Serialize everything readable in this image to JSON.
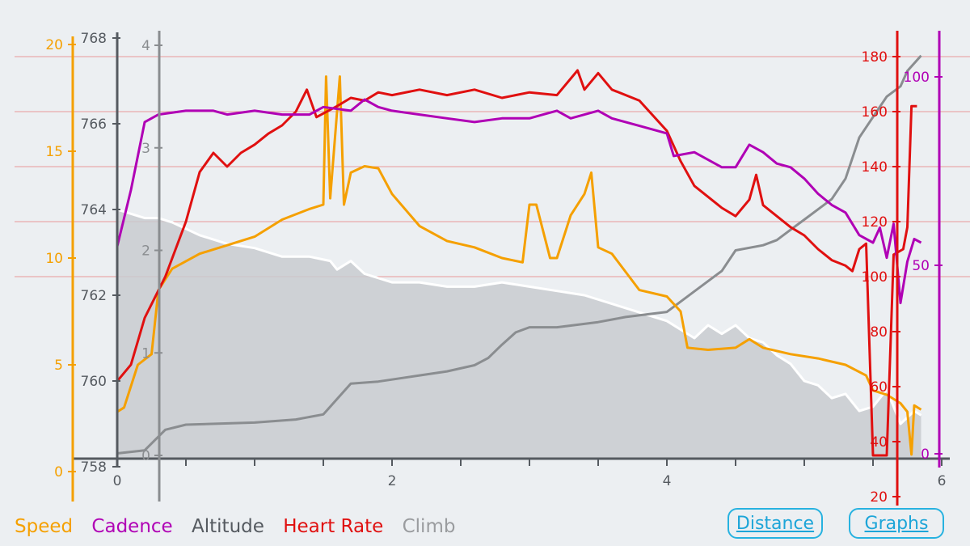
{
  "chart_data": {
    "type": "line",
    "x_axis": {
      "ticks": [
        "0",
        "2",
        "4",
        "6"
      ],
      "range": [
        0,
        6
      ]
    },
    "axes": {
      "speed": {
        "ticks": [
          "0",
          "5",
          "10",
          "15",
          "20"
        ],
        "range": [
          0,
          20
        ],
        "color": "#f5a000"
      },
      "altitude": {
        "ticks": [
          "758",
          "760",
          "762",
          "764",
          "766",
          "768"
        ],
        "range": [
          758,
          768
        ],
        "color": "#555a60"
      },
      "climb": {
        "ticks": [
          "0",
          "1",
          "2",
          "3",
          "4"
        ],
        "range": [
          0,
          4
        ],
        "color": "#8a8d90"
      },
      "heart_rate": {
        "ticks": [
          "20",
          "40",
          "60",
          "80",
          "100",
          "120",
          "140",
          "160",
          "180"
        ],
        "range": [
          20,
          190
        ],
        "color": "#e01010"
      },
      "cadence": {
        "ticks": [
          "0",
          "50",
          "100"
        ],
        "range": [
          0,
          110
        ],
        "color": "#b000b5"
      }
    },
    "series": [
      {
        "name": "Altitude",
        "axis": "altitude",
        "color": "#ffffff",
        "fill": "#c9cbd0",
        "points": [
          [
            0,
            764.0
          ],
          [
            0.1,
            763.9
          ],
          [
            0.2,
            763.8
          ],
          [
            0.3,
            763.8
          ],
          [
            0.4,
            763.7
          ],
          [
            0.6,
            763.4
          ],
          [
            0.8,
            763.2
          ],
          [
            1.0,
            763.1
          ],
          [
            1.2,
            762.9
          ],
          [
            1.4,
            762.9
          ],
          [
            1.55,
            762.8
          ],
          [
            1.6,
            762.6
          ],
          [
            1.7,
            762.8
          ],
          [
            1.8,
            762.5
          ],
          [
            2.0,
            762.3
          ],
          [
            2.2,
            762.3
          ],
          [
            2.4,
            762.2
          ],
          [
            2.6,
            762.2
          ],
          [
            2.8,
            762.3
          ],
          [
            3.0,
            762.2
          ],
          [
            3.2,
            762.1
          ],
          [
            3.4,
            762.0
          ],
          [
            3.6,
            761.8
          ],
          [
            3.8,
            761.6
          ],
          [
            4.0,
            761.4
          ],
          [
            4.2,
            761.0
          ],
          [
            4.3,
            761.3
          ],
          [
            4.4,
            761.1
          ],
          [
            4.5,
            761.3
          ],
          [
            4.6,
            761.0
          ],
          [
            4.7,
            760.9
          ],
          [
            4.8,
            760.6
          ],
          [
            4.9,
            760.4
          ],
          [
            5.0,
            760.0
          ],
          [
            5.1,
            759.9
          ],
          [
            5.2,
            759.6
          ],
          [
            5.3,
            759.7
          ],
          [
            5.4,
            759.3
          ],
          [
            5.5,
            759.4
          ],
          [
            5.6,
            759.8
          ],
          [
            5.7,
            759.0
          ],
          [
            5.8,
            759.3
          ],
          [
            5.85,
            759.2
          ]
        ]
      },
      {
        "name": "Climb",
        "axis": "climb",
        "color": "#8a8d90",
        "points": [
          [
            0,
            0.02
          ],
          [
            0.2,
            0.05
          ],
          [
            0.35,
            0.25
          ],
          [
            0.5,
            0.3
          ],
          [
            1.0,
            0.32
          ],
          [
            1.3,
            0.35
          ],
          [
            1.5,
            0.4
          ],
          [
            1.6,
            0.55
          ],
          [
            1.7,
            0.7
          ],
          [
            1.9,
            0.72
          ],
          [
            2.2,
            0.78
          ],
          [
            2.4,
            0.82
          ],
          [
            2.6,
            0.88
          ],
          [
            2.7,
            0.95
          ],
          [
            2.8,
            1.08
          ],
          [
            2.9,
            1.2
          ],
          [
            3.0,
            1.25
          ],
          [
            3.2,
            1.25
          ],
          [
            3.5,
            1.3
          ],
          [
            3.7,
            1.35
          ],
          [
            4.0,
            1.4
          ],
          [
            4.2,
            1.6
          ],
          [
            4.4,
            1.8
          ],
          [
            4.5,
            2.0
          ],
          [
            4.7,
            2.05
          ],
          [
            4.8,
            2.1
          ],
          [
            4.9,
            2.2
          ],
          [
            5.0,
            2.3
          ],
          [
            5.1,
            2.4
          ],
          [
            5.2,
            2.5
          ],
          [
            5.3,
            2.7
          ],
          [
            5.4,
            3.1
          ],
          [
            5.5,
            3.3
          ],
          [
            5.6,
            3.5
          ],
          [
            5.7,
            3.6
          ],
          [
            5.75,
            3.75
          ],
          [
            5.85,
            3.9
          ]
        ]
      },
      {
        "name": "Speed",
        "axis": "speed",
        "color": "#f5a000",
        "points": [
          [
            0,
            2.8
          ],
          [
            0.05,
            3.0
          ],
          [
            0.15,
            5.0
          ],
          [
            0.25,
            5.5
          ],
          [
            0.3,
            8.5
          ],
          [
            0.4,
            9.5
          ],
          [
            0.6,
            10.2
          ],
          [
            0.8,
            10.6
          ],
          [
            1.0,
            11.0
          ],
          [
            1.2,
            11.8
          ],
          [
            1.4,
            12.3
          ],
          [
            1.5,
            12.5
          ],
          [
            1.52,
            18.5
          ],
          [
            1.55,
            12.8
          ],
          [
            1.62,
            18.5
          ],
          [
            1.65,
            12.5
          ],
          [
            1.7,
            14.0
          ],
          [
            1.8,
            14.3
          ],
          [
            1.9,
            14.2
          ],
          [
            2.0,
            13.0
          ],
          [
            2.2,
            11.5
          ],
          [
            2.4,
            10.8
          ],
          [
            2.6,
            10.5
          ],
          [
            2.8,
            10.0
          ],
          [
            2.95,
            9.8
          ],
          [
            3.0,
            12.5
          ],
          [
            3.05,
            12.5
          ],
          [
            3.15,
            10.0
          ],
          [
            3.2,
            10.0
          ],
          [
            3.3,
            12.0
          ],
          [
            3.4,
            13.0
          ],
          [
            3.45,
            14.0
          ],
          [
            3.5,
            10.5
          ],
          [
            3.6,
            10.2
          ],
          [
            3.8,
            8.5
          ],
          [
            4.0,
            8.2
          ],
          [
            4.1,
            7.5
          ],
          [
            4.15,
            5.8
          ],
          [
            4.3,
            5.7
          ],
          [
            4.5,
            5.8
          ],
          [
            4.6,
            6.2
          ],
          [
            4.7,
            5.8
          ],
          [
            4.9,
            5.5
          ],
          [
            5.1,
            5.3
          ],
          [
            5.3,
            5.0
          ],
          [
            5.45,
            4.5
          ],
          [
            5.5,
            3.8
          ],
          [
            5.6,
            3.6
          ],
          [
            5.7,
            3.2
          ],
          [
            5.75,
            2.8
          ],
          [
            5.78,
            0.8
          ],
          [
            5.8,
            3.1
          ],
          [
            5.85,
            2.9
          ]
        ]
      },
      {
        "name": "Heart Rate",
        "axis": "heart_rate",
        "color": "#e01010",
        "points": [
          [
            0,
            62
          ],
          [
            0.1,
            68
          ],
          [
            0.2,
            85
          ],
          [
            0.35,
            100
          ],
          [
            0.5,
            120
          ],
          [
            0.6,
            138
          ],
          [
            0.7,
            145
          ],
          [
            0.8,
            140
          ],
          [
            0.9,
            145
          ],
          [
            1.0,
            148
          ],
          [
            1.1,
            152
          ],
          [
            1.2,
            155
          ],
          [
            1.3,
            160
          ],
          [
            1.38,
            168
          ],
          [
            1.45,
            158
          ],
          [
            1.6,
            162
          ],
          [
            1.7,
            165
          ],
          [
            1.8,
            164
          ],
          [
            1.9,
            167
          ],
          [
            2.0,
            166
          ],
          [
            2.2,
            168
          ],
          [
            2.4,
            166
          ],
          [
            2.6,
            168
          ],
          [
            2.8,
            165
          ],
          [
            3.0,
            167
          ],
          [
            3.2,
            166
          ],
          [
            3.35,
            175
          ],
          [
            3.4,
            168
          ],
          [
            3.5,
            174
          ],
          [
            3.6,
            168
          ],
          [
            3.8,
            164
          ],
          [
            4.0,
            153
          ],
          [
            4.1,
            142
          ],
          [
            4.2,
            133
          ],
          [
            4.4,
            125
          ],
          [
            4.5,
            122
          ],
          [
            4.6,
            128
          ],
          [
            4.65,
            137
          ],
          [
            4.7,
            126
          ],
          [
            4.8,
            122
          ],
          [
            4.9,
            118
          ],
          [
            5.0,
            115
          ],
          [
            5.1,
            110
          ],
          [
            5.2,
            106
          ],
          [
            5.3,
            104
          ],
          [
            5.35,
            102
          ],
          [
            5.4,
            110
          ],
          [
            5.45,
            112
          ],
          [
            5.5,
            35
          ],
          [
            5.6,
            35
          ],
          [
            5.65,
            108
          ],
          [
            5.72,
            110
          ],
          [
            5.75,
            118
          ],
          [
            5.78,
            162
          ],
          [
            5.82,
            162
          ]
        ]
      },
      {
        "name": "Cadence",
        "axis": "cadence",
        "color": "#b000b5",
        "points": [
          [
            0,
            55
          ],
          [
            0.1,
            70
          ],
          [
            0.2,
            88
          ],
          [
            0.3,
            90
          ],
          [
            0.5,
            91
          ],
          [
            0.7,
            91
          ],
          [
            0.8,
            90
          ],
          [
            1.0,
            91
          ],
          [
            1.2,
            90
          ],
          [
            1.4,
            90
          ],
          [
            1.5,
            92
          ],
          [
            1.7,
            91
          ],
          [
            1.8,
            94
          ],
          [
            1.9,
            92
          ],
          [
            2.0,
            91
          ],
          [
            2.2,
            90
          ],
          [
            2.4,
            89
          ],
          [
            2.6,
            88
          ],
          [
            2.8,
            89
          ],
          [
            3.0,
            89
          ],
          [
            3.1,
            90
          ],
          [
            3.2,
            91
          ],
          [
            3.3,
            89
          ],
          [
            3.5,
            91
          ],
          [
            3.6,
            89
          ],
          [
            3.8,
            87
          ],
          [
            4.0,
            85
          ],
          [
            4.05,
            79
          ],
          [
            4.2,
            80
          ],
          [
            4.4,
            76
          ],
          [
            4.5,
            76
          ],
          [
            4.6,
            82
          ],
          [
            4.7,
            80
          ],
          [
            4.8,
            77
          ],
          [
            4.9,
            76
          ],
          [
            5.0,
            73
          ],
          [
            5.1,
            69
          ],
          [
            5.2,
            66
          ],
          [
            5.3,
            64
          ],
          [
            5.4,
            58
          ],
          [
            5.5,
            56
          ],
          [
            5.55,
            60
          ],
          [
            5.6,
            52
          ],
          [
            5.65,
            61
          ],
          [
            5.7,
            40
          ],
          [
            5.75,
            51
          ],
          [
            5.8,
            57
          ],
          [
            5.85,
            56
          ]
        ]
      }
    ]
  },
  "legend": {
    "speed": "Speed",
    "cadence": "Cadence",
    "altitude": "Altitude",
    "heart_rate": "Heart Rate",
    "climb": "Climb",
    "colors": {
      "speed": "#f5a000",
      "cadence": "#b000b5",
      "altitude": "#555a60",
      "heart_rate": "#e01010",
      "climb": "#9a9c9f"
    }
  },
  "buttons": {
    "distance": "Distance",
    "graphs": "Graphs"
  }
}
